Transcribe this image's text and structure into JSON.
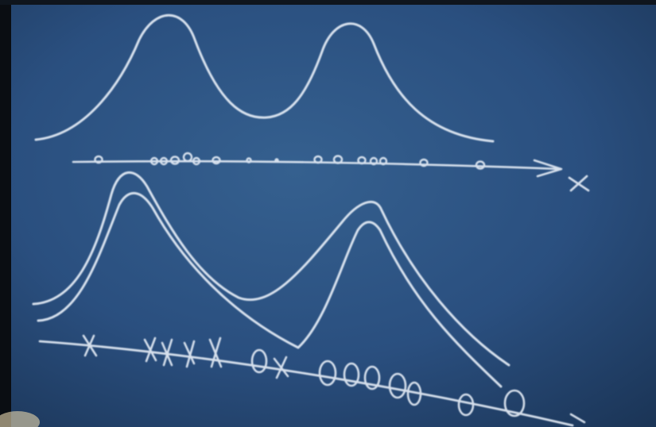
{
  "scene": {
    "subject": "chalkboard",
    "colors": {
      "board_blue": "#2a4f7f",
      "board_blue_light": "#35608f",
      "board_blue_dark": "#1b3557",
      "frame_dark": "#0a0d12",
      "chalk": "#e3ebf5"
    }
  },
  "top_axis": {
    "label": "X"
  }
}
